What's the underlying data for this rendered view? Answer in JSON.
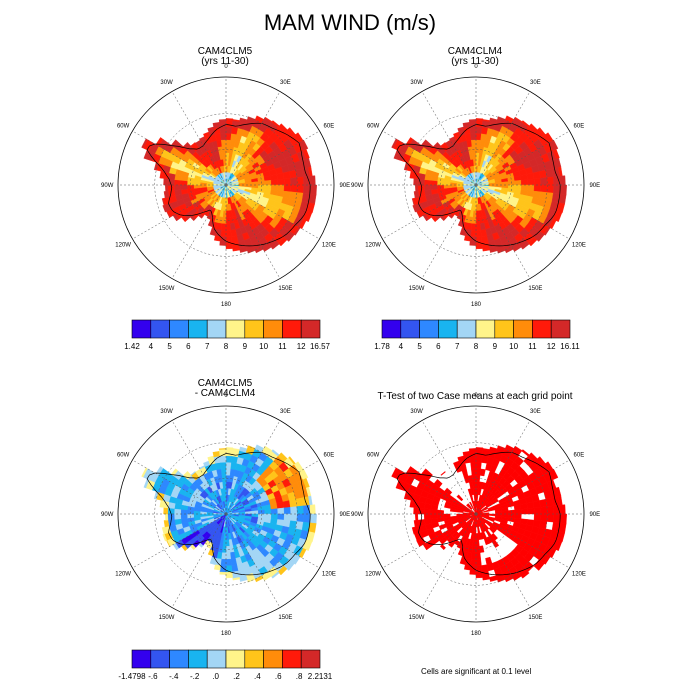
{
  "title": "MAM WIND (m/s)",
  "lon_labels": [
    "0",
    "30E",
    "60E",
    "90E",
    "120E",
    "150E",
    "180",
    "150W",
    "120W",
    "90W",
    "60W",
    "30W"
  ],
  "panels": [
    {
      "title": "CAM4CLM5",
      "subtitle": "(yrs 11-30)",
      "kind": "wind"
    },
    {
      "title": "CAM4CLM4",
      "subtitle": "(yrs 11-30)",
      "kind": "wind"
    },
    {
      "title": "CAM4CLM5",
      "subtitle": "- CAM4CLM4",
      "kind": "diff"
    },
    {
      "title": "T-Test of two Case means at each grid point",
      "subtitle": "",
      "kind": "ttest"
    }
  ],
  "colorbars": [
    {
      "labels": [
        "1.42",
        "4",
        "5",
        "6",
        "7",
        "8",
        "9",
        "10",
        "11",
        "12",
        "16.57"
      ]
    },
    {
      "labels": [
        "1.78",
        "4",
        "5",
        "6",
        "7",
        "8",
        "9",
        "10",
        "11",
        "12",
        "16.11"
      ]
    },
    {
      "labels": [
        "-1.4798",
        "-.6",
        "-.4",
        "-.2",
        ".0",
        ".2",
        ".4",
        ".6",
        ".8",
        "2.2131"
      ]
    }
  ],
  "footnote": "Cells are significant at 0.1 level",
  "colors": {
    "wind": [
      "#3300ee",
      "#3355f0",
      "#2e88ff",
      "#19b4f0",
      "#a3d6f5",
      "#fff48a",
      "#ffc41a",
      "#ff8c0a",
      "#ff1a0a",
      "#d42828"
    ],
    "diff": [
      "#3300ee",
      "#3355f0",
      "#2e88ff",
      "#19b4f0",
      "#a3d6f5",
      "#fff48a",
      "#ffc41a",
      "#ff8c0a",
      "#ff1a0a",
      "#d42828"
    ],
    "ttest": "#ff0000"
  }
}
